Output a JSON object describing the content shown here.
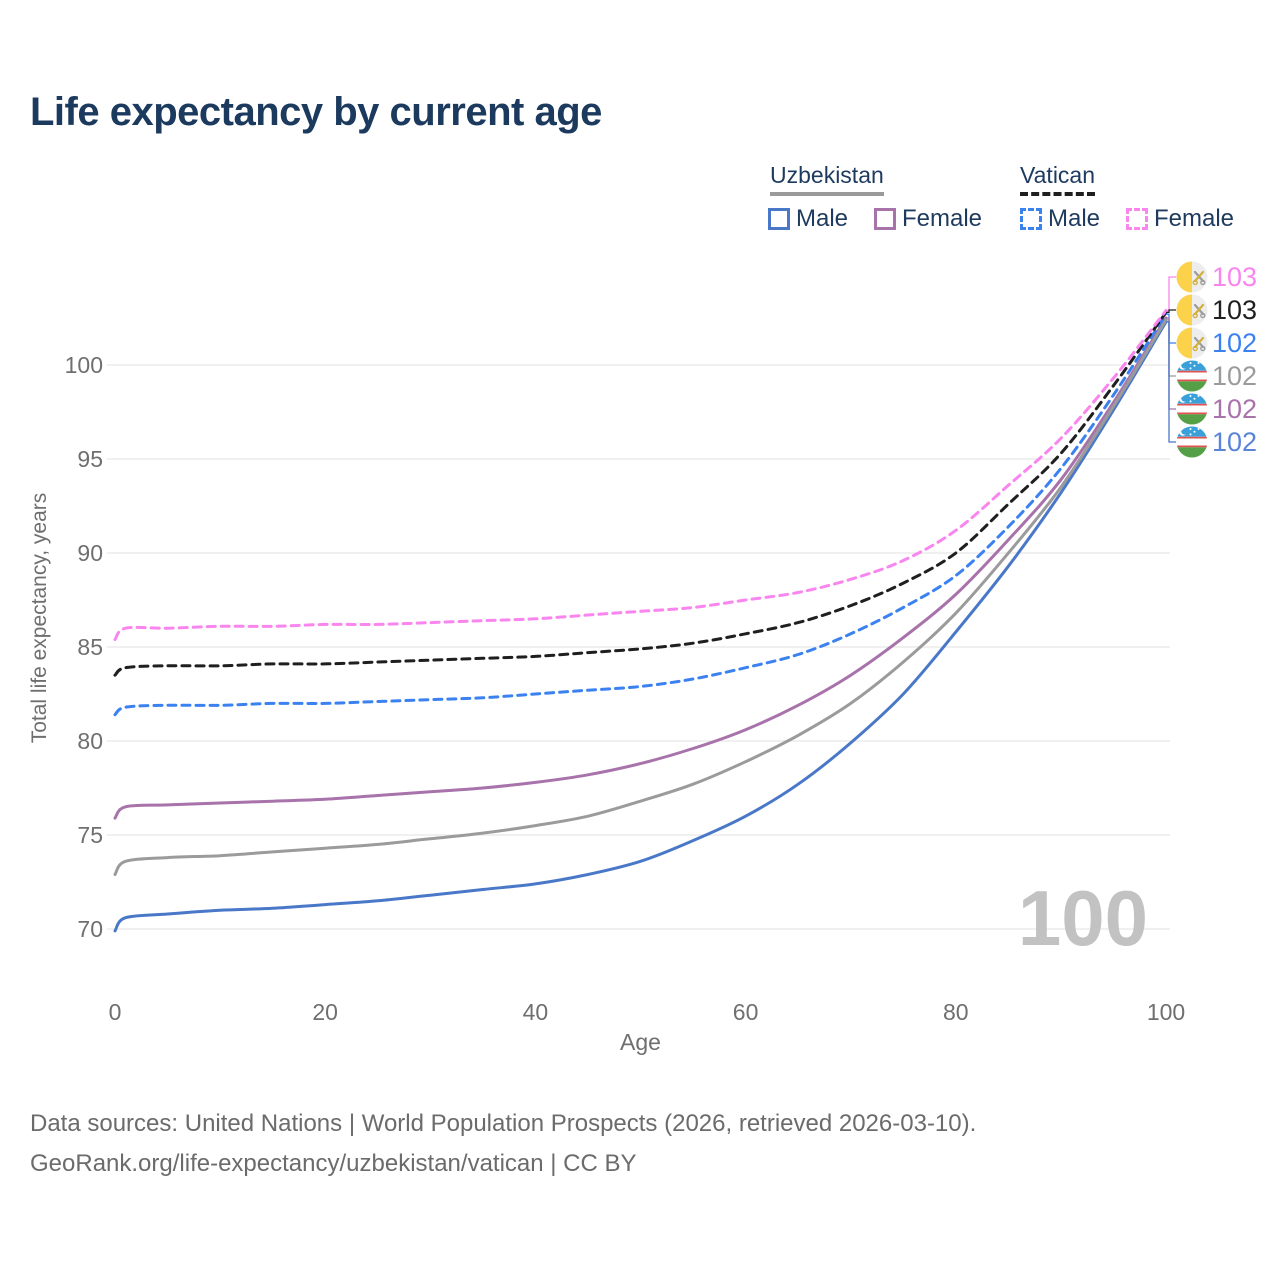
{
  "title": "Life expectancy by current age",
  "legend": {
    "uzbekistan": {
      "label": "Uzbekistan",
      "male": "Male",
      "female": "Female"
    },
    "vatican": {
      "label": "Vatican",
      "male": "Male",
      "female": "Female"
    }
  },
  "watermark": "100",
  "footer": {
    "line1": "Data sources: United Nations | World Population Prospects (2026, retrieved 2026-03-10).",
    "line2": "GeoRank.org/life-expectancy/uzbekistan/vatican | CC BY"
  },
  "colors": {
    "title": "#1b3a5e",
    "axis_text": "#6f6f6f",
    "gridline": "#ececec",
    "watermark": "#c2c2c2",
    "uzbekistan_male": "#4a78c8",
    "uzbekistan_female": "#a872aa",
    "uzbekistan_total": "#9b9b9b",
    "vatican_male": "#3b82f0",
    "vatican_female": "#f985ef",
    "vatican_total": "#1f1f1f"
  },
  "chart_data": {
    "type": "line",
    "title": "Life expectancy by current age",
    "xlabel": "Age",
    "ylabel": "Total life expectancy, years",
    "x_ticks": [
      0,
      20,
      40,
      60,
      80,
      100
    ],
    "y_ticks": [
      70,
      75,
      80,
      85,
      90,
      95,
      100
    ],
    "xlim": [
      0,
      100
    ],
    "ylim": [
      69,
      104
    ],
    "grid": "horizontal-only",
    "legend_position": "top-right",
    "ages": [
      0,
      1,
      5,
      10,
      15,
      20,
      25,
      30,
      35,
      40,
      45,
      50,
      55,
      60,
      65,
      70,
      75,
      80,
      85,
      90,
      95,
      100
    ],
    "series": [
      {
        "name": "Vatican Female",
        "country": "vatican",
        "sex": "female",
        "color": "#f985ef",
        "label_color": "#f985ef",
        "dashed": true,
        "end_label": "103",
        "values": [
          85.4,
          86.0,
          86.0,
          86.1,
          86.1,
          86.2,
          86.2,
          86.3,
          86.4,
          86.5,
          86.7,
          86.9,
          87.1,
          87.5,
          87.9,
          88.6,
          89.6,
          91.2,
          93.6,
          96.1,
          99.3,
          102.9
        ]
      },
      {
        "name": "Vatican Total",
        "country": "vatican",
        "sex": "total",
        "color": "#1f1f1f",
        "label_color": "#1f1f1f",
        "dashed": true,
        "end_label": "103",
        "values": [
          83.5,
          83.9,
          84.0,
          84.0,
          84.1,
          84.1,
          84.2,
          84.3,
          84.4,
          84.5,
          84.7,
          84.9,
          85.2,
          85.7,
          86.3,
          87.2,
          88.4,
          90.0,
          92.6,
          95.3,
          98.9,
          102.8
        ]
      },
      {
        "name": "Vatican Male",
        "country": "vatican",
        "sex": "male",
        "color": "#3b82f0",
        "label_color": "#3b82f0",
        "dashed": true,
        "end_label": "102",
        "values": [
          81.4,
          81.8,
          81.9,
          81.9,
          82.0,
          82.0,
          82.1,
          82.2,
          82.3,
          82.5,
          82.7,
          82.9,
          83.3,
          83.9,
          84.6,
          85.7,
          87.1,
          88.8,
          91.4,
          94.5,
          98.4,
          102.7
        ]
      },
      {
        "name": "Uzbekistan Total",
        "country": "uzbekistan",
        "sex": "total",
        "color": "#9b9b9b",
        "label_color": "#9b9b9b",
        "dashed": false,
        "end_label": "102",
        "values": [
          72.9,
          73.6,
          73.8,
          73.9,
          74.1,
          74.3,
          74.5,
          74.8,
          75.1,
          75.5,
          76.0,
          76.8,
          77.7,
          78.9,
          80.3,
          82.0,
          84.2,
          86.8,
          90.0,
          93.5,
          97.8,
          102.4
        ]
      },
      {
        "name": "Uzbekistan Female",
        "country": "uzbekistan",
        "sex": "female",
        "color": "#a872aa",
        "label_color": "#a872aa",
        "dashed": false,
        "end_label": "102",
        "values": [
          75.9,
          76.5,
          76.6,
          76.7,
          76.8,
          76.9,
          77.1,
          77.3,
          77.5,
          77.8,
          78.2,
          78.8,
          79.6,
          80.6,
          81.9,
          83.5,
          85.5,
          87.8,
          90.7,
          93.9,
          98.0,
          102.5
        ]
      },
      {
        "name": "Uzbekistan Male",
        "country": "uzbekistan",
        "sex": "male",
        "color": "#4a78c8",
        "label_color": "#5b84d8",
        "dashed": false,
        "end_label": "102",
        "values": [
          69.9,
          70.6,
          70.8,
          71.0,
          71.1,
          71.3,
          71.5,
          71.8,
          72.1,
          72.4,
          72.9,
          73.6,
          74.7,
          76.0,
          77.7,
          79.9,
          82.5,
          85.8,
          89.3,
          93.2,
          97.6,
          102.3
        ]
      }
    ]
  }
}
